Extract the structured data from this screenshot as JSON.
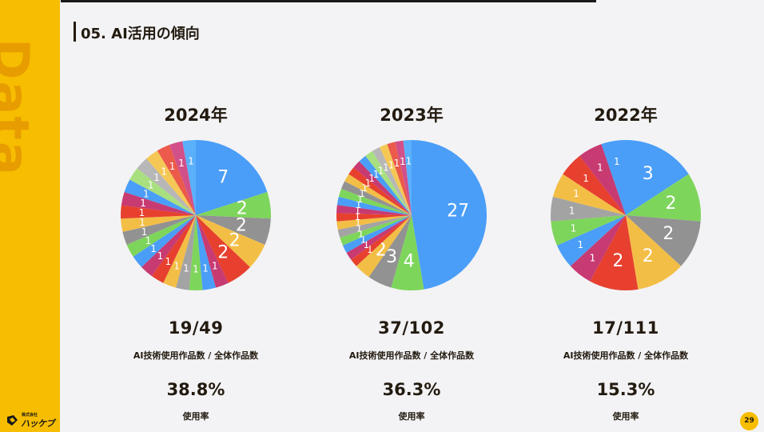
{
  "section": {
    "title": "05. AI活用の傾向"
  },
  "sidebar": {
    "word": "Data"
  },
  "logo": {
    "corp": "株式会社",
    "name": "ハッケブ"
  },
  "page_number": "29",
  "colors": [
    "#4a9ef7",
    "#7ed55b",
    "#929292",
    "#f3be46",
    "#e7402f",
    "#c73a72",
    "#4a9ef7",
    "#7ed55b",
    "#a3a3a3",
    "#f3be46",
    "#e7402f",
    "#c73a72",
    "#4a9ef7",
    "#7ed55b",
    "#929292",
    "#f3be46",
    "#e7402f",
    "#c73a72",
    "#4a9ef7",
    "#a8e07f",
    "#b7b7b7",
    "#f5c856",
    "#eb5a4a",
    "#d2508a",
    "#5ab0fb",
    "#8ddb70"
  ],
  "panels": [
    {
      "year": "2024年",
      "ratio": "19/49",
      "ratio_label": "AI技術使用作品数 / 全体作品数",
      "rate": "38.8%",
      "rate_label": "使用率"
    },
    {
      "year": "2023年",
      "ratio": "37/102",
      "ratio_label": "AI技術使用作品数 / 全体作品数",
      "rate": "36.3%",
      "rate_label": "使用率"
    },
    {
      "year": "2022年",
      "ratio": "17/111",
      "ratio_label": "AI技術使用作品数 / 全体作品数",
      "rate": "15.3%",
      "rate_label": "使用率"
    }
  ],
  "chart_data": [
    {
      "type": "pie",
      "title": "2024年",
      "values": [
        7,
        2,
        2,
        2,
        2,
        1,
        1,
        1,
        1,
        1,
        1,
        1,
        1,
        1,
        1,
        1,
        1,
        1,
        1,
        1,
        1,
        1,
        1,
        1,
        1
      ]
    },
    {
      "type": "pie",
      "title": "2023年",
      "values": [
        27,
        4,
        3,
        2,
        1,
        1,
        1,
        1,
        1,
        1,
        1,
        1,
        1,
        1,
        1,
        1,
        1,
        1,
        1,
        1,
        1,
        1,
        1,
        1,
        1
      ]
    },
    {
      "type": "pie",
      "title": "2022年",
      "values": [
        3,
        2,
        2,
        2,
        2,
        1,
        1,
        1,
        1,
        1,
        1,
        1,
        1
      ]
    }
  ]
}
